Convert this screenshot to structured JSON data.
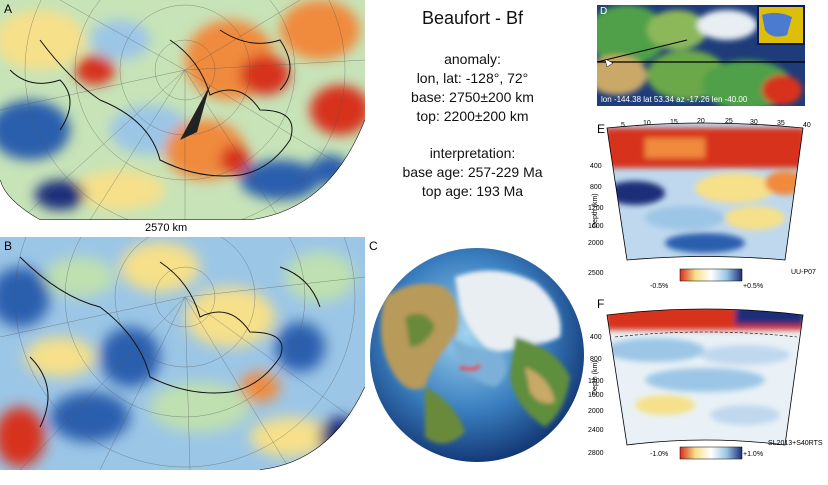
{
  "title": "Beaufort - Bf",
  "anomaly": {
    "heading": "anomaly:",
    "lonlat": "lon, lat: -128°, 72°",
    "base": "base: 2750±200 km",
    "top": "top: 2200±200 km"
  },
  "interpretation": {
    "heading": "interpretation:",
    "base_age": "base age: 257-229 Ma",
    "top_age": "top age: 193 Ma"
  },
  "panels": {
    "a_label": "A",
    "a_depth": "2570 km",
    "b_label": "B",
    "c_label": "C",
    "d_overlay": "lon -144.38 lat 53.34 az -17.26 len -40.00",
    "e_label": "E",
    "e_ticks_top": [
      "5",
      "10",
      "15",
      "20",
      "25",
      "30",
      "35",
      "40"
    ],
    "e_depth_ticks": [
      "400",
      "800",
      "1200",
      "1600",
      "2000",
      "2500"
    ],
    "e_depth_label": "Depth (km)",
    "e_scale_min": "-0.5%",
    "e_scale_max": "+0.5%",
    "e_model": "UU-P07",
    "f_label": "F",
    "f_depth_ticks": [
      "400",
      "800",
      "1200",
      "1600",
      "2000",
      "2400",
      "2800"
    ],
    "f_depth_label": "Depth (km)",
    "f_scale_min": "-1.0%",
    "f_scale_max": "+1.0%",
    "f_model": "SL2013+S40RTS"
  },
  "colors": {
    "red": "#d7301f",
    "orange": "#f08a3c",
    "yellow": "#f6e08a",
    "lightgreen": "#bfe0b0",
    "lightblue": "#9cc6e6",
    "blue": "#2b5fae",
    "darkblue": "#1c2f7a"
  }
}
